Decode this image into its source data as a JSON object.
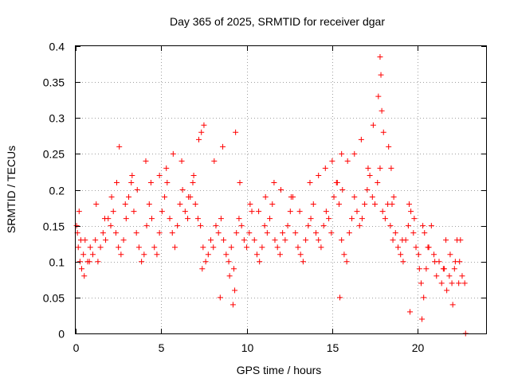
{
  "chart_data": {
    "type": "scatter",
    "title": "Day 365 of 2025, SRMTID for receiver dgar",
    "xlabel": "GPS time / hours",
    "ylabel": "SRMTID / TECUs",
    "xlim": [
      0,
      24
    ],
    "ylim": [
      0,
      0.4
    ],
    "xticks": [
      0,
      5,
      10,
      15,
      20
    ],
    "xtick_labels": [
      "0",
      "5",
      "10",
      "15",
      "20"
    ],
    "yticks": [
      0,
      0.05,
      0.1,
      0.15,
      0.2,
      0.25,
      0.3,
      0.35,
      0.4
    ],
    "ytick_labels": [
      "0",
      "0.05",
      "0.1",
      "0.15",
      "0.2",
      "0.25",
      "0.3",
      "0.35",
      "0.4"
    ],
    "grid": true,
    "marker": "+",
    "color": "#ff0000",
    "series": [
      {
        "name": "SRMTID",
        "x": [
          0.05,
          0.15,
          0.25,
          0.35,
          0.45,
          0.55,
          0.7,
          0.85,
          1.0,
          1.15,
          1.3,
          1.45,
          1.6,
          1.75,
          1.9,
          2.05,
          2.2,
          2.35,
          2.5,
          2.65,
          2.8,
          2.95,
          3.1,
          3.25,
          3.4,
          3.55,
          3.7,
          3.85,
          4.0,
          4.15,
          4.3,
          4.45,
          4.6,
          4.75,
          4.9,
          5.05,
          5.2,
          5.35,
          5.5,
          5.65,
          5.8,
          5.95,
          6.1,
          6.25,
          6.4,
          6.55,
          6.7,
          6.85,
          7.0,
          7.15,
          7.3,
          7.45,
          7.6,
          7.75,
          7.9,
          8.05,
          8.2,
          8.35,
          8.5,
          8.65,
          8.8,
          8.95,
          9.1,
          9.25,
          9.4,
          9.55,
          9.7,
          9.85,
          10.0,
          10.15,
          10.3,
          10.45,
          10.6,
          10.75,
          10.9,
          11.05,
          11.2,
          11.35,
          11.5,
          11.65,
          11.8,
          11.95,
          12.1,
          12.25,
          12.4,
          12.55,
          12.7,
          12.85,
          13.0,
          13.15,
          13.3,
          13.45,
          13.6,
          13.75,
          13.9,
          14.05,
          14.2,
          14.35,
          14.5,
          14.65,
          14.8,
          14.95,
          15.1,
          15.25,
          15.4,
          15.55,
          15.7,
          15.85,
          16.0,
          16.15,
          16.3,
          16.45,
          16.6,
          16.75,
          16.9,
          17.05,
          17.2,
          17.35,
          17.5,
          17.65,
          17.8,
          17.95,
          18.1,
          18.25,
          18.4,
          18.55,
          18.7,
          18.85,
          19.0,
          19.15,
          19.3,
          19.45,
          19.6,
          19.75,
          19.9,
          20.05,
          20.2,
          20.35,
          20.5,
          20.65,
          20.8,
          20.95,
          21.1,
          21.25,
          21.4,
          21.55,
          21.7,
          21.85,
          22.0,
          22.15,
          22.3,
          22.45,
          22.6,
          22.75,
          0.1,
          0.2,
          0.3,
          0.5,
          0.8,
          1.2,
          1.7,
          2.1,
          2.4,
          2.9,
          3.3,
          3.6,
          4.1,
          4.4,
          4.9,
          5.3,
          5.7,
          6.2,
          6.6,
          6.9,
          7.2,
          7.5,
          8.1,
          8.6,
          9.0,
          9.3,
          9.6,
          10.2,
          10.7,
          11.1,
          11.6,
          12.0,
          12.6,
          13.1,
          13.7,
          14.2,
          14.6,
          15.0,
          15.3,
          15.6,
          15.9,
          16.3,
          16.7,
          17.1,
          17.4,
          17.7,
          17.8,
          17.85,
          17.9,
          18.0,
          18.3,
          18.6,
          19.1,
          19.5,
          19.8,
          20.1,
          20.3,
          20.6,
          21.0,
          21.5,
          21.9,
          22.2,
          22.5,
          22.8,
          2.55,
          7.35,
          7.4,
          8.45,
          9.2,
          9.35,
          15.45,
          15.55,
          18.45,
          18.5,
          19.55,
          20.25,
          20.4,
          21.65,
          22.05,
          22.4
        ],
        "y": [
          0.15,
          0.12,
          0.1,
          0.09,
          0.11,
          0.13,
          0.1,
          0.12,
          0.11,
          0.13,
          0.1,
          0.12,
          0.14,
          0.13,
          0.16,
          0.15,
          0.17,
          0.14,
          0.12,
          0.11,
          0.13,
          0.16,
          0.19,
          0.21,
          0.17,
          0.14,
          0.12,
          0.1,
          0.11,
          0.15,
          0.18,
          0.16,
          0.12,
          0.11,
          0.14,
          0.17,
          0.19,
          0.21,
          0.16,
          0.14,
          0.12,
          0.15,
          0.18,
          0.2,
          0.17,
          0.16,
          0.19,
          0.21,
          0.18,
          0.16,
          0.15,
          0.12,
          0.1,
          0.11,
          0.13,
          0.12,
          0.15,
          0.14,
          0.16,
          0.13,
          0.11,
          0.1,
          0.12,
          0.09,
          0.14,
          0.16,
          0.15,
          0.13,
          0.12,
          0.14,
          0.17,
          0.13,
          0.11,
          0.1,
          0.12,
          0.15,
          0.14,
          0.16,
          0.18,
          0.13,
          0.12,
          0.11,
          0.14,
          0.13,
          0.15,
          0.17,
          0.19,
          0.14,
          0.12,
          0.11,
          0.1,
          0.13,
          0.15,
          0.16,
          0.18,
          0.14,
          0.13,
          0.12,
          0.15,
          0.17,
          0.16,
          0.14,
          0.19,
          0.21,
          0.18,
          0.13,
          0.11,
          0.1,
          0.14,
          0.16,
          0.19,
          0.17,
          0.15,
          0.16,
          0.18,
          0.2,
          0.22,
          0.19,
          0.18,
          0.21,
          0.23,
          0.17,
          0.16,
          0.18,
          0.15,
          0.13,
          0.14,
          0.12,
          0.11,
          0.1,
          0.13,
          0.15,
          0.17,
          0.14,
          0.12,
          0.11,
          0.07,
          0.05,
          0.09,
          0.12,
          0.15,
          0.11,
          0.08,
          0.1,
          0.07,
          0.09,
          0.06,
          0.08,
          0.07,
          0.09,
          0.13,
          0.1,
          0.08,
          0.07,
          0.14,
          0.17,
          0.13,
          0.08,
          0.1,
          0.18,
          0.16,
          0.19,
          0.21,
          0.18,
          0.22,
          0.2,
          0.24,
          0.21,
          0.22,
          0.23,
          0.25,
          0.24,
          0.19,
          0.22,
          0.27,
          0.29,
          0.24,
          0.26,
          0.08,
          0.06,
          0.21,
          0.18,
          0.17,
          0.19,
          0.21,
          0.2,
          0.19,
          0.17,
          0.21,
          0.22,
          0.23,
          0.24,
          0.21,
          0.2,
          0.24,
          0.25,
          0.27,
          0.23,
          0.29,
          0.33,
          0.385,
          0.36,
          0.31,
          0.28,
          0.26,
          0.19,
          0.13,
          0.18,
          0.16,
          0.09,
          0.15,
          0.12,
          0.1,
          0.09,
          0.11,
          0.1,
          0.13,
          0.0,
          0.26,
          0.28,
          0.09,
          0.05,
          0.04,
          0.28,
          0.05,
          0.25,
          0.23,
          0.18,
          0.03,
          0.02,
          0.14,
          0.13,
          0.04,
          0.07
        ]
      }
    ]
  }
}
